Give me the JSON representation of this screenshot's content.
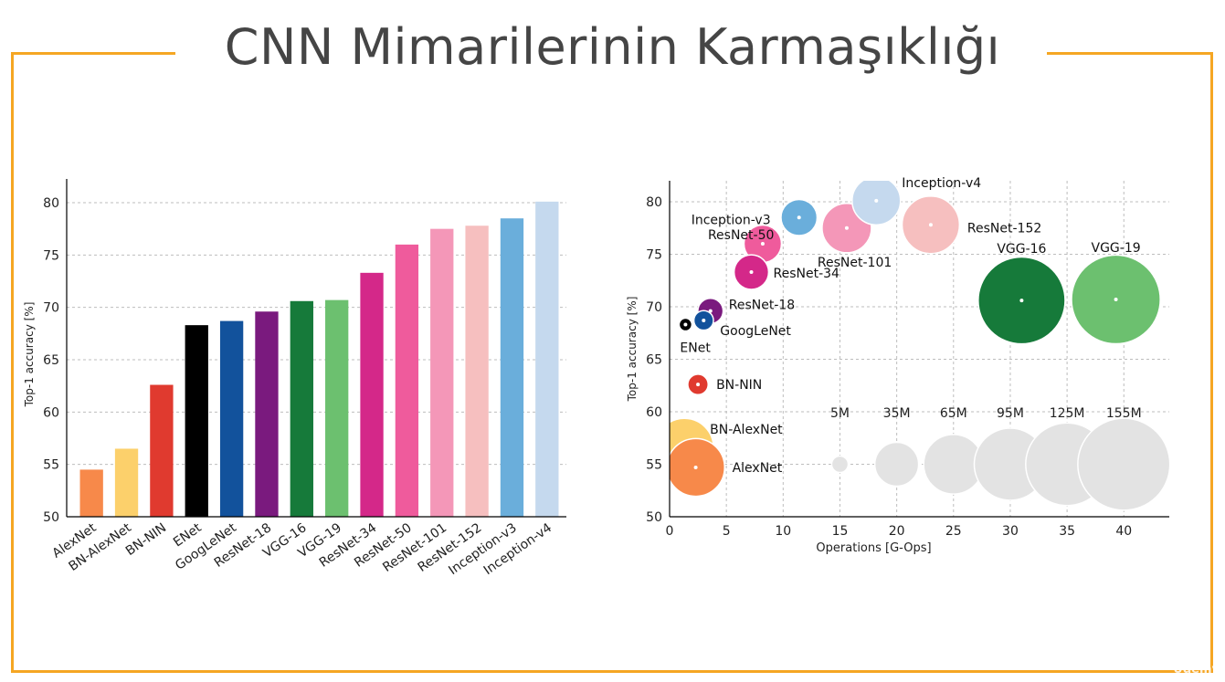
{
  "slide": {
    "title": "CNN Mimarilerinin Karmaşıklığı",
    "accent_color": "#f5a623",
    "watermark": "Udemy"
  },
  "chart_data": [
    {
      "type": "bar",
      "ylabel": "Top-1 accuracy [%]",
      "ylim": [
        50,
        80
      ],
      "yticks": [
        50,
        55,
        60,
        65,
        70,
        75,
        80
      ],
      "grid": true,
      "categories": [
        "AlexNet",
        "BN-AlexNet",
        "BN-NIN",
        "ENet",
        "GoogLeNet",
        "ResNet-18",
        "VGG-16",
        "VGG-19",
        "ResNet-34",
        "ResNet-50",
        "ResNet-101",
        "ResNet-152",
        "Inception-v3",
        "Inception-v4"
      ],
      "values": [
        54.5,
        56.5,
        62.6,
        68.3,
        68.7,
        69.6,
        70.6,
        70.7,
        73.3,
        76.0,
        77.5,
        77.8,
        78.5,
        80.1
      ],
      "colors": [
        "#f7894a",
        "#fcd06b",
        "#e03a2f",
        "#000000",
        "#12529c",
        "#7a1a7e",
        "#167a3a",
        "#6cc06f",
        "#d42889",
        "#ef5b9c",
        "#f497b8",
        "#f6bfbf",
        "#6aaedb",
        "#c5d9ee"
      ]
    },
    {
      "type": "scatter",
      "xlabel": "Operations [G-Ops]",
      "ylabel": "Top-1 accuracy [%]",
      "xlim": [
        0,
        44
      ],
      "ylim": [
        50,
        82
      ],
      "xticks": [
        0,
        5,
        10,
        15,
        20,
        25,
        30,
        35,
        40
      ],
      "yticks": [
        50,
        55,
        60,
        65,
        70,
        75,
        80
      ],
      "grid": true,
      "points": [
        {
          "label": "AlexNet",
          "x": 2.3,
          "y": 54.7,
          "params_m": 61,
          "color": "#f7894a"
        },
        {
          "label": "BN-AlexNet",
          "x": 1.3,
          "y": 56.6,
          "params_m": 62,
          "color": "#fcd06b"
        },
        {
          "label": "BN-NIN",
          "x": 2.5,
          "y": 62.6,
          "params_m": 7.6,
          "color": "#e03a2f"
        },
        {
          "label": "ENet",
          "x": 1.4,
          "y": 68.3,
          "params_m": 0.4,
          "color": "#000000"
        },
        {
          "label": "GoogLeNet",
          "x": 3.0,
          "y": 68.7,
          "params_m": 7,
          "color": "#12529c"
        },
        {
          "label": "ResNet-18",
          "x": 3.6,
          "y": 69.6,
          "params_m": 11.7,
          "color": "#7a1a7e"
        },
        {
          "label": "ResNet-34",
          "x": 7.2,
          "y": 73.3,
          "params_m": 21.8,
          "color": "#d42889"
        },
        {
          "label": "ResNet-50",
          "x": 8.2,
          "y": 76.0,
          "params_m": 25.6,
          "color": "#ef5b9c"
        },
        {
          "label": "Inception-v3",
          "x": 11.4,
          "y": 78.5,
          "params_m": 23.8,
          "color": "#6aaedb"
        },
        {
          "label": "ResNet-101",
          "x": 15.6,
          "y": 77.5,
          "params_m": 44.5,
          "color": "#f497b8"
        },
        {
          "label": "Inception-v4",
          "x": 18.2,
          "y": 80.1,
          "params_m": 42.7,
          "color": "#c5d9ee"
        },
        {
          "label": "ResNet-152",
          "x": 23.0,
          "y": 77.8,
          "params_m": 60.2,
          "color": "#f6bfbf"
        },
        {
          "label": "VGG-16",
          "x": 31.0,
          "y": 70.6,
          "params_m": 138,
          "color": "#167a3a"
        },
        {
          "label": "VGG-19",
          "x": 39.3,
          "y": 70.7,
          "params_m": 144,
          "color": "#6cc06f"
        }
      ],
      "size_legend": {
        "y": 55,
        "color": "#e3e3e3",
        "items": [
          {
            "label": "5M",
            "x": 15,
            "params_m": 5
          },
          {
            "label": "35M",
            "x": 20,
            "params_m": 35
          },
          {
            "label": "65M",
            "x": 25,
            "params_m": 65
          },
          {
            "label": "95M",
            "x": 30,
            "params_m": 95
          },
          {
            "label": "125M",
            "x": 35,
            "params_m": 125
          },
          {
            "label": "155M",
            "x": 40,
            "params_m": 155
          }
        ]
      }
    }
  ]
}
